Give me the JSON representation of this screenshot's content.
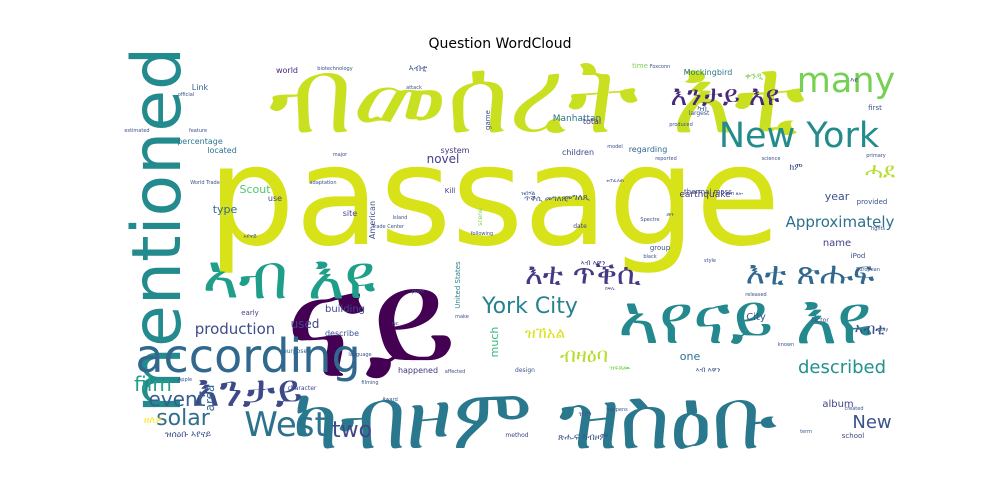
{
  "chart_data": {
    "type": "wordcloud",
    "title": "Question WordCloud",
    "colormap": "viridis",
    "background": "#ffffff",
    "words": [
      {
        "text": "passage",
        "weight": 1.0,
        "color": "#d8e219"
      },
      {
        "text": "ናይ",
        "weight": 0.98,
        "color": "#440154"
      },
      {
        "text": "ብመሰረት እቲ",
        "weight": 0.88,
        "color": "#c8e020"
      },
      {
        "text": "ኣየናይ እዩ",
        "weight": 0.6,
        "color": "#23898e"
      },
      {
        "text": "ካብዞም ዝስዕቡ",
        "weight": 0.6,
        "color": "#2a788e"
      },
      {
        "text": "mentioned",
        "weight": 0.58,
        "color": "#238a8d"
      },
      {
        "text": "according",
        "weight": 0.45,
        "color": "#31688e"
      },
      {
        "text": "ኣብ እዩ",
        "weight": 0.42,
        "color": "#1f9e89"
      },
      {
        "text": "New York",
        "weight": 0.38,
        "color": "#228c8d"
      },
      {
        "text": "many",
        "weight": 0.36,
        "color": "#75d054"
      },
      {
        "text": "እንታይ",
        "weight": 0.33,
        "color": "#3e4989"
      },
      {
        "text": "West",
        "weight": 0.3,
        "color": "#2c728e"
      },
      {
        "text": "እቲ ጥቕሲ",
        "weight": 0.28,
        "color": "#443983"
      },
      {
        "text": "እቲ ጽሑፍ",
        "weight": 0.28,
        "color": "#31688e"
      },
      {
        "text": "York City",
        "weight": 0.2,
        "color": "#26828e"
      },
      {
        "text": "እንታይ እዩ",
        "weight": 0.2,
        "color": "#482878"
      },
      {
        "text": "described",
        "weight": 0.16,
        "color": "#21918c"
      },
      {
        "text": "Approximately",
        "weight": 0.12,
        "color": "#2d708e"
      },
      {
        "text": "ሓደ",
        "weight": 0.14,
        "color": "#b5de2b"
      },
      {
        "text": "ብዛዕባ",
        "weight": 0.14,
        "color": "#b5de2b"
      },
      {
        "text": "solar",
        "weight": 0.14,
        "color": "#2e6e8e"
      },
      {
        "text": "event",
        "weight": 0.13,
        "color": "#355f8d"
      },
      {
        "text": "two",
        "weight": 0.14,
        "color": "#404688"
      },
      {
        "text": "film",
        "weight": 0.13,
        "color": "#1fa088"
      },
      {
        "text": "New",
        "weight": 0.12,
        "color": "#3b528b"
      },
      {
        "text": "production",
        "weight": 0.1,
        "color": "#3e4c8a"
      },
      {
        "text": "ኣብቲ",
        "weight": 0.08,
        "color": "#3b528b"
      },
      {
        "text": "ዝኸአል",
        "weight": 0.08,
        "color": "#d8e219"
      },
      {
        "text": "novel",
        "weight": 0.06,
        "color": "#433e85"
      },
      {
        "text": "Scout",
        "weight": 0.06,
        "color": "#52c569"
      },
      {
        "text": "used",
        "weight": 0.06,
        "color": "#414487"
      },
      {
        "text": "year",
        "weight": 0.06,
        "color": "#3b528b"
      },
      {
        "text": "area",
        "weight": 0.07,
        "color": "#31688e"
      },
      {
        "text": "type",
        "weight": 0.05,
        "color": "#31688e"
      },
      {
        "text": "much",
        "weight": 0.05,
        "color": "#35b779"
      },
      {
        "text": "album",
        "weight": 0.05,
        "color": "#414487"
      },
      {
        "text": "City",
        "weight": 0.05,
        "color": "#3b528b"
      },
      {
        "text": "one",
        "weight": 0.05,
        "color": "#2c728e"
      },
      {
        "text": "name",
        "weight": 0.04,
        "color": "#414487"
      },
      {
        "text": "building",
        "weight": 0.04,
        "color": "#3e4989"
      },
      {
        "text": "Manhattan",
        "weight": 0.04,
        "color": "#2c728e"
      },
      {
        "text": "earthquake",
        "weight": 0.04,
        "color": "#443983"
      },
      {
        "text": "Mockingbird",
        "weight": 0.04,
        "color": "#2a788e"
      },
      {
        "text": "total",
        "weight": 0.04,
        "color": "#46327e"
      },
      {
        "text": "Link",
        "weight": 0.04,
        "color": "#355f8d"
      },
      {
        "text": "located",
        "weight": 0.04,
        "color": "#2c728e"
      },
      {
        "text": "percentage",
        "weight": 0.04,
        "color": "#2a788e"
      },
      {
        "text": "American",
        "weight": 0.04,
        "color": "#3b528b"
      },
      {
        "text": "children",
        "weight": 0.04,
        "color": "#3e4989"
      },
      {
        "text": "regarding",
        "weight": 0.04,
        "color": "#31688e"
      },
      {
        "text": "system",
        "weight": 0.04,
        "color": "#46327e"
      },
      {
        "text": "world",
        "weight": 0.04,
        "color": "#482878"
      },
      {
        "text": "use",
        "weight": 0.04,
        "color": "#3e4989"
      },
      {
        "text": "early",
        "weight": 0.03,
        "color": "#433e85"
      },
      {
        "text": "describe",
        "weight": 0.03,
        "color": "#3b528b"
      },
      {
        "text": "happened",
        "weight": 0.03,
        "color": "#443983"
      },
      {
        "text": "school",
        "weight": 0.03,
        "color": "#414487"
      },
      {
        "text": "game",
        "weight": 0.03,
        "color": "#3b528b"
      },
      {
        "text": "site",
        "weight": 0.03,
        "color": "#414487"
      },
      {
        "text": "Kill",
        "weight": 0.03,
        "color": "#443983"
      },
      {
        "text": "time",
        "weight": 0.03,
        "color": "#7ad151"
      },
      {
        "text": "first",
        "weight": 0.03,
        "color": "#3b528b"
      },
      {
        "text": "provided",
        "weight": 0.03,
        "color": "#3b528b"
      },
      {
        "text": "group",
        "weight": 0.03,
        "color": "#3b528b"
      },
      {
        "text": "purpose",
        "weight": 0.03,
        "color": "#31688e"
      },
      {
        "text": "character",
        "weight": 0.03,
        "color": "#404688"
      },
      {
        "text": "method",
        "weight": 0.02,
        "color": "#414487"
      },
      {
        "text": "United States",
        "weight": 0.02,
        "color": "#26828e"
      },
      {
        "text": "thermal mass",
        "weight": 0.02,
        "color": "#3e4989"
      },
      {
        "text": "factor",
        "weight": 0.02,
        "color": "#3b528b"
      },
      {
        "text": "largest",
        "weight": 0.02,
        "color": "#3b528b"
      },
      {
        "text": "design",
        "weight": 0.02,
        "color": "#3b528b"
      },
      {
        "text": "date",
        "weight": 0.02,
        "color": "#414487"
      },
      {
        "text": "scene",
        "weight": 0.02,
        "color": "#7ad151"
      },
      {
        "text": "produced",
        "weight": 0.02,
        "color": "#3b528b"
      },
      {
        "text": "reported",
        "weight": 0.02,
        "color": "#3b528b"
      },
      {
        "text": "science",
        "weight": 0.02,
        "color": "#3b528b"
      },
      {
        "text": "biotechnology",
        "weight": 0.015,
        "color": "#3b528b"
      },
      {
        "text": "Foxconn",
        "weight": 0.015,
        "color": "#3b528b"
      },
      {
        "text": "Spectre",
        "weight": 0.015,
        "color": "#3b528b"
      },
      {
        "text": "Island",
        "weight": 0.015,
        "color": "#3b528b"
      },
      {
        "text": "World Trade",
        "weight": 0.015,
        "color": "#3b528b"
      },
      {
        "text": "Trade Center",
        "weight": 0.015,
        "color": "#3b528b"
      },
      {
        "text": "iPod",
        "weight": 0.015,
        "color": "#3b528b"
      },
      {
        "text": "Apple",
        "weight": 0.015,
        "color": "#3b528b"
      },
      {
        "text": "Award",
        "weight": 0.015,
        "color": "#3b528b"
      },
      {
        "text": "filming",
        "weight": 0.015,
        "color": "#3b528b"
      },
      {
        "text": "European",
        "weight": 0.015,
        "color": "#3b528b"
      },
      {
        "text": "feature",
        "weight": 0.015,
        "color": "#3b528b"
      },
      {
        "text": "official",
        "weight": 0.015,
        "color": "#3b528b"
      },
      {
        "text": "affected",
        "weight": 0.015,
        "color": "#3b528b"
      },
      {
        "text": "happens",
        "weight": 0.015,
        "color": "#3b528b"
      },
      {
        "text": "known",
        "weight": 0.015,
        "color": "#3b528b"
      },
      {
        "text": "created",
        "weight": 0.015,
        "color": "#3b528b"
      },
      {
        "text": "make",
        "weight": 0.015,
        "color": "#3b528b"
      },
      {
        "text": "plant",
        "weight": 0.015,
        "color": "#3b528b"
      },
      {
        "text": "black",
        "weight": 0.015,
        "color": "#3b528b"
      },
      {
        "text": "style",
        "weight": 0.015,
        "color": "#3b528b"
      },
      {
        "text": "primary",
        "weight": 0.015,
        "color": "#3b528b"
      },
      {
        "text": "term",
        "weight": 0.015,
        "color": "#3b528b"
      },
      {
        "text": "play",
        "weight": 0.015,
        "color": "#3b528b"
      },
      {
        "text": "following",
        "weight": 0.015,
        "color": "#3b528b"
      },
      {
        "text": "released",
        "weight": 0.015,
        "color": "#3b528b"
      },
      {
        "text": "model",
        "weight": 0.015,
        "color": "#3b528b"
      },
      {
        "text": "major",
        "weight": 0.015,
        "color": "#3b528b"
      },
      {
        "text": "rights",
        "weight": 0.015,
        "color": "#3b528b"
      },
      {
        "text": "adaptation",
        "weight": 0.015,
        "color": "#3b528b"
      },
      {
        "text": "estimated",
        "weight": 0.015,
        "color": "#3b528b"
      },
      {
        "text": "attack",
        "weight": 0.015,
        "color": "#3b528b"
      },
      {
        "text": "language",
        "weight": 0.015,
        "color": "#3b528b"
      },
      {
        "text": "ቀንዲ",
        "weight": 0.04,
        "color": "#7ad151"
      },
      {
        "text": "መግለጺ",
        "weight": 0.04,
        "color": "#3b528b"
      },
      {
        "text": "ኣብቲ",
        "weight": 0.04,
        "color": "#3b528b"
      },
      {
        "text": "ኣብ እዋን",
        "weight": 0.03,
        "color": "#46327e"
      },
      {
        "text": "ዝሰዕቡ ኣየናይ",
        "weight": 0.03,
        "color": "#3b528b"
      },
      {
        "text": "ጽሑፍ ካብዞም",
        "weight": 0.03,
        "color": "#3b528b"
      },
      {
        "text": "ዝፍጸሙ",
        "weight": 0.03,
        "color": "#7ad151"
      },
      {
        "text": "ዘለዎ",
        "weight": 0.03,
        "color": "#fde725"
      },
      {
        "text": "ጥቕሲ መግለጺ",
        "weight": 0.02,
        "color": "#3b528b"
      },
      {
        "text": "እዩ",
        "weight": 0.02,
        "color": "#3b528b"
      },
      {
        "text": "ኣብ እዋን",
        "weight": 0.02,
        "color": "#3b528b"
      },
      {
        "text": "ካብ",
        "weight": 0.02,
        "color": "#3b528b"
      },
      {
        "text": "ዝበሃል",
        "weight": 0.02,
        "color": "#3b528b"
      },
      {
        "text": "ክም",
        "weight": 0.02,
        "color": "#3b528b"
      },
      {
        "text": "ዝኾነ",
        "weight": 0.02,
        "color": "#3b528b"
      },
      {
        "text": "ዝተፈለጠ",
        "weight": 0.015,
        "color": "#3b528b"
      },
      {
        "text": "ኣብ ዘሎ",
        "weight": 0.015,
        "color": "#3b528b"
      },
      {
        "text": "ነገር",
        "weight": 0.015,
        "color": "#3b528b"
      },
      {
        "text": "ክፍሊ",
        "weight": 0.015,
        "color": "#3b528b"
      },
      {
        "text": "ኣየናይ",
        "weight": 0.015,
        "color": "#3b528b"
      },
      {
        "text": "መን",
        "weight": 0.015,
        "color": "#3b528b"
      }
    ]
  }
}
